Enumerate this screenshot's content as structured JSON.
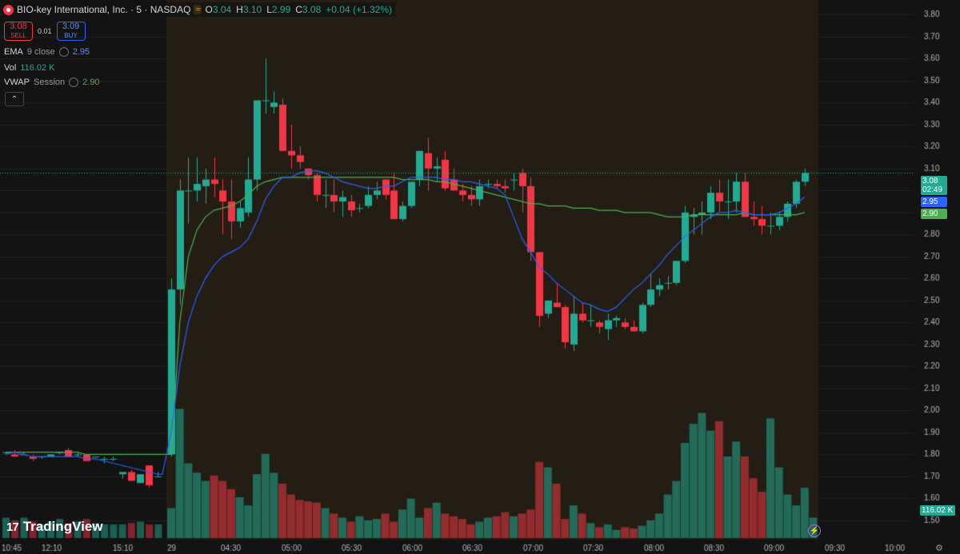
{
  "header": {
    "symbol_title": "BIO-key International, Inc. · 5 · NASDAQ",
    "flag_icon": "≈",
    "ohlc": {
      "o_label": "O",
      "o": "3.04",
      "h_label": "H",
      "h": "3.10",
      "l_label": "L",
      "l": "2.99",
      "c_label": "C",
      "c": "3.08",
      "change": "+0.04 (+1.32%)"
    }
  },
  "trade": {
    "sell_price": "3.08",
    "sell_label": "SELL",
    "spread": "0.01",
    "buy_price": "3.09",
    "buy_label": "BUY"
  },
  "indicators": [
    {
      "name": "EMA",
      "args": "9 close",
      "value": "2.95",
      "color": "#2962ff"
    },
    {
      "name": "Vol",
      "args": "",
      "value": "116.02 K",
      "color": "#22ab94"
    },
    {
      "name": "VWAP",
      "args": "Session",
      "value": "2.90",
      "color": "#4caf50"
    }
  ],
  "collapse_icon": "⌃",
  "branding": "TradingView",
  "price_tags": {
    "last": "3.08",
    "countdown": "02:49",
    "ema": "2.95",
    "vwap": "2.90",
    "volume": "116.02 K"
  },
  "colors": {
    "up": "#22ab94",
    "down": "#f23645",
    "ema": "#2962ff",
    "vwap": "#4caf50",
    "session_bg": "#231d13"
  },
  "chart_data": {
    "type": "candlestick",
    "price_axis_ticks": [
      "3.80",
      "3.70",
      "3.60",
      "3.50",
      "3.40",
      "3.30",
      "3.20",
      "3.10",
      "3.00",
      "2.90",
      "2.80",
      "2.70",
      "2.60",
      "2.50",
      "2.40",
      "2.30",
      "2.20",
      "2.10",
      "2.00",
      "1.90",
      "1.80",
      "1.70",
      "1.60",
      "1.50"
    ],
    "ylim": [
      1.46,
      3.83
    ],
    "time_axis_ticks": [
      "10:45",
      "12:10",
      "15:10",
      "29",
      "04:30",
      "05:00",
      "05:30",
      "06:00",
      "06:30",
      "07:00",
      "07:30",
      "08:00",
      "08:30",
      "09:00",
      "09:30",
      "10:00"
    ],
    "candles_prev_day": [
      [
        1.81,
        1.81,
        1.8,
        1.81
      ],
      [
        1.8,
        1.82,
        1.79,
        1.79
      ],
      [
        1.8,
        1.81,
        1.8,
        1.8
      ],
      [
        1.79,
        1.8,
        1.77,
        1.78
      ],
      [
        1.79,
        1.79,
        1.78,
        1.79
      ],
      [
        1.79,
        1.8,
        1.79,
        1.8
      ],
      [
        1.81,
        1.81,
        1.8,
        1.81
      ],
      [
        1.82,
        1.83,
        1.79,
        1.79
      ],
      [
        1.8,
        1.81,
        1.79,
        1.8
      ],
      [
        1.8,
        1.8,
        1.77,
        1.77
      ],
      [
        1.79,
        1.79,
        1.79,
        1.79
      ],
      [
        1.78,
        1.79,
        1.76,
        1.78
      ],
      [
        1.78,
        1.79,
        1.77,
        1.78
      ],
      [
        1.71,
        1.72,
        1.69,
        1.72
      ],
      [
        1.72,
        1.73,
        1.68,
        1.68
      ],
      [
        1.67,
        1.71,
        1.67,
        1.71
      ],
      [
        1.75,
        1.75,
        1.65,
        1.66
      ],
      [
        1.7,
        1.72,
        1.7,
        1.7
      ]
    ],
    "candles_session": [
      [
        1.8,
        2.6,
        1.79,
        2.55
      ],
      [
        2.55,
        3.05,
        2.48,
        3.0
      ],
      [
        3.0,
        3.15,
        2.85,
        3.0
      ],
      [
        3.0,
        3.15,
        2.95,
        3.03
      ],
      [
        3.02,
        3.1,
        2.94,
        3.05
      ],
      [
        3.05,
        3.15,
        2.97,
        3.03
      ],
      [
        3.0,
        3.05,
        2.8,
        2.95
      ],
      [
        2.95,
        3.05,
        2.78,
        2.86
      ],
      [
        2.86,
        2.95,
        2.83,
        2.92
      ],
      [
        2.9,
        3.15,
        2.88,
        3.05
      ],
      [
        3.05,
        3.4,
        3.0,
        3.41
      ],
      [
        3.41,
        3.6,
        3.35,
        3.41
      ],
      [
        3.38,
        3.45,
        3.35,
        3.4
      ],
      [
        3.39,
        3.42,
        3.2,
        3.18
      ],
      [
        3.18,
        3.3,
        3.1,
        3.16
      ],
      [
        3.16,
        3.2,
        3.1,
        3.13
      ],
      [
        3.1,
        3.1,
        3.05,
        3.07
      ],
      [
        3.07,
        3.08,
        2.95,
        2.98
      ],
      [
        2.98,
        3.05,
        2.92,
        2.98
      ],
      [
        2.98,
        3.05,
        2.9,
        2.95
      ],
      [
        2.95,
        3.0,
        2.88,
        2.97
      ],
      [
        2.95,
        2.98,
        2.88,
        2.91
      ],
      [
        2.92,
        2.94,
        2.9,
        2.92
      ],
      [
        2.93,
        3.02,
        2.92,
        2.98
      ],
      [
        2.98,
        3.04,
        2.96,
        3.0
      ],
      [
        3.05,
        3.05,
        2.96,
        2.98
      ],
      [
        3.0,
        3.08,
        2.9,
        2.87
      ],
      [
        2.87,
        2.95,
        2.86,
        2.93
      ],
      [
        2.93,
        3.0,
        2.92,
        3.04
      ],
      [
        3.05,
        3.1,
        3.02,
        3.18
      ],
      [
        3.17,
        3.24,
        3.0,
        3.1
      ],
      [
        3.1,
        3.15,
        3.04,
        3.11
      ],
      [
        3.14,
        3.18,
        3.0,
        3.01
      ],
      [
        3.05,
        3.1,
        3.0,
        3.0
      ],
      [
        3.0,
        3.03,
        2.95,
        2.98
      ],
      [
        2.98,
        3.02,
        2.93,
        2.96
      ],
      [
        2.96,
        3.05,
        2.93,
        3.02
      ],
      [
        3.03,
        3.05,
        3.01,
        3.03
      ],
      [
        3.03,
        3.05,
        3.01,
        3.02
      ],
      [
        3.02,
        3.05,
        2.99,
        3.01
      ],
      [
        3.05,
        3.08,
        3.0,
        3.05
      ],
      [
        3.08,
        3.1,
        2.9,
        3.02
      ],
      [
        3.02,
        3.06,
        2.68,
        2.72
      ],
      [
        2.72,
        2.7,
        2.38,
        2.43
      ],
      [
        2.44,
        2.5,
        2.42,
        2.5
      ],
      [
        2.49,
        2.58,
        2.47,
        2.47
      ],
      [
        2.47,
        2.48,
        2.28,
        2.31
      ],
      [
        2.3,
        2.52,
        2.27,
        2.44
      ],
      [
        2.44,
        2.49,
        2.4,
        2.41
      ],
      [
        2.41,
        2.48,
        2.38,
        2.41
      ],
      [
        2.4,
        2.41,
        2.35,
        2.38
      ],
      [
        2.37,
        2.44,
        2.32,
        2.41
      ],
      [
        2.41,
        2.43,
        2.38,
        2.42
      ],
      [
        2.4,
        2.42,
        2.37,
        2.38
      ],
      [
        2.38,
        2.41,
        2.36,
        2.36
      ],
      [
        2.36,
        2.49,
        2.35,
        2.48
      ],
      [
        2.48,
        2.62,
        2.47,
        2.55
      ],
      [
        2.55,
        2.6,
        2.52,
        2.57
      ],
      [
        2.58,
        2.61,
        2.55,
        2.58
      ],
      [
        2.58,
        2.68,
        2.57,
        2.68
      ],
      [
        2.68,
        2.93,
        2.67,
        2.9
      ],
      [
        2.88,
        2.92,
        2.8,
        2.89
      ],
      [
        2.89,
        2.95,
        2.8,
        2.9
      ],
      [
        2.9,
        3.02,
        2.87,
        2.99
      ],
      [
        2.99,
        3.05,
        2.9,
        2.95
      ],
      [
        2.95,
        3.05,
        2.87,
        2.95
      ],
      [
        2.95,
        3.08,
        2.9,
        3.04
      ],
      [
        3.04,
        3.08,
        2.88,
        2.88
      ],
      [
        2.88,
        2.95,
        2.84,
        2.87
      ],
      [
        2.87,
        2.93,
        2.8,
        2.84
      ],
      [
        2.84,
        2.9,
        2.8,
        2.84
      ],
      [
        2.84,
        2.9,
        2.82,
        2.88
      ],
      [
        2.88,
        2.95,
        2.86,
        2.94
      ],
      [
        2.94,
        3.05,
        2.92,
        3.04
      ],
      [
        3.04,
        3.1,
        3.02,
        3.08
      ]
    ],
    "ema9": [
      1.8,
      1.81,
      1.8,
      1.79,
      1.79,
      1.79,
      1.79,
      1.79,
      1.79,
      1.78,
      1.78,
      1.77,
      1.76,
      1.75,
      1.74,
      1.73,
      1.72,
      1.71,
      1.71,
      1.9,
      2.2,
      2.4,
      2.52,
      2.6,
      2.66,
      2.7,
      2.72,
      2.74,
      2.78,
      2.86,
      2.96,
      3.02,
      3.06,
      3.06,
      3.08,
      3.09,
      3.09,
      3.08,
      3.06,
      3.04,
      3.03,
      3.02,
      3.01,
      3.01,
      3.02,
      3.02,
      3.04,
      3.06,
      3.06,
      3.06,
      3.06,
      3.05,
      3.05,
      3.04,
      3.04,
      3.03,
      3.02,
      3.01,
      2.98,
      2.88,
      2.78,
      2.72,
      2.65,
      2.62,
      2.58,
      2.55,
      2.52,
      2.49,
      2.48,
      2.46,
      2.45,
      2.47,
      2.51,
      2.55,
      2.58,
      2.62,
      2.66,
      2.71,
      2.75,
      2.79,
      2.82,
      2.85,
      2.88,
      2.9,
      2.9,
      2.91,
      2.9,
      2.89,
      2.89,
      2.89,
      2.9,
      2.92,
      2.94,
      2.97
    ],
    "vwap": [
      1.81,
      1.81,
      1.81,
      1.81,
      1.81,
      1.81,
      1.81,
      1.81,
      1.81,
      1.8,
      1.8,
      1.8,
      1.8,
      1.8,
      1.8,
      1.8,
      1.8,
      1.8,
      1.8,
      1.8,
      2.4,
      2.7,
      2.82,
      2.88,
      2.91,
      2.92,
      2.93,
      2.95,
      2.98,
      3.02,
      3.04,
      3.05,
      3.06,
      3.06,
      3.06,
      3.06,
      3.06,
      3.06,
      3.06,
      3.06,
      3.06,
      3.06,
      3.06,
      3.06,
      3.06,
      3.06,
      3.05,
      3.05,
      3.05,
      3.05,
      3.04,
      3.04,
      3.03,
      3.02,
      3.01,
      3.0,
      2.99,
      2.98,
      2.97,
      2.96,
      2.95,
      2.94,
      2.94,
      2.93,
      2.93,
      2.93,
      2.92,
      2.92,
      2.92,
      2.91,
      2.91,
      2.91,
      2.9,
      2.9,
      2.9,
      2.9,
      2.89,
      2.88,
      2.88,
      2.88,
      2.89,
      2.89,
      2.89,
      2.89,
      2.89,
      2.89,
      2.9,
      2.89,
      2.89,
      2.89,
      2.89,
      2.89,
      2.89,
      2.9
    ],
    "volume": {
      "unit": "relative",
      "prev_day": [
        0.15,
        0.13,
        0.15,
        0.12,
        0.1,
        0.12,
        0.14,
        0.11,
        0.12,
        0.14,
        0.11,
        0.1,
        0.1,
        0.1,
        0.11,
        0.12,
        0.1,
        0.1
      ],
      "session": [
        0.22,
        0.95,
        0.55,
        0.48,
        0.42,
        0.46,
        0.42,
        0.36,
        0.3,
        0.24,
        0.47,
        0.62,
        0.48,
        0.4,
        0.32,
        0.28,
        0.27,
        0.26,
        0.22,
        0.18,
        0.15,
        0.12,
        0.16,
        0.13,
        0.14,
        0.18,
        0.12,
        0.21,
        0.29,
        0.15,
        0.22,
        0.26,
        0.18,
        0.16,
        0.14,
        0.1,
        0.12,
        0.15,
        0.16,
        0.19,
        0.16,
        0.18,
        0.21,
        0.56,
        0.52,
        0.4,
        0.14,
        0.24,
        0.18,
        0.11,
        0.08,
        0.1,
        0.06,
        0.08,
        0.07,
        0.09,
        0.13,
        0.18,
        0.32,
        0.42,
        0.7,
        0.84,
        0.92,
        0.79,
        0.86,
        0.6,
        0.71,
        0.6,
        0.44,
        0.34,
        0.88,
        0.52,
        0.32,
        0.24,
        0.37,
        0.15
      ]
    }
  }
}
